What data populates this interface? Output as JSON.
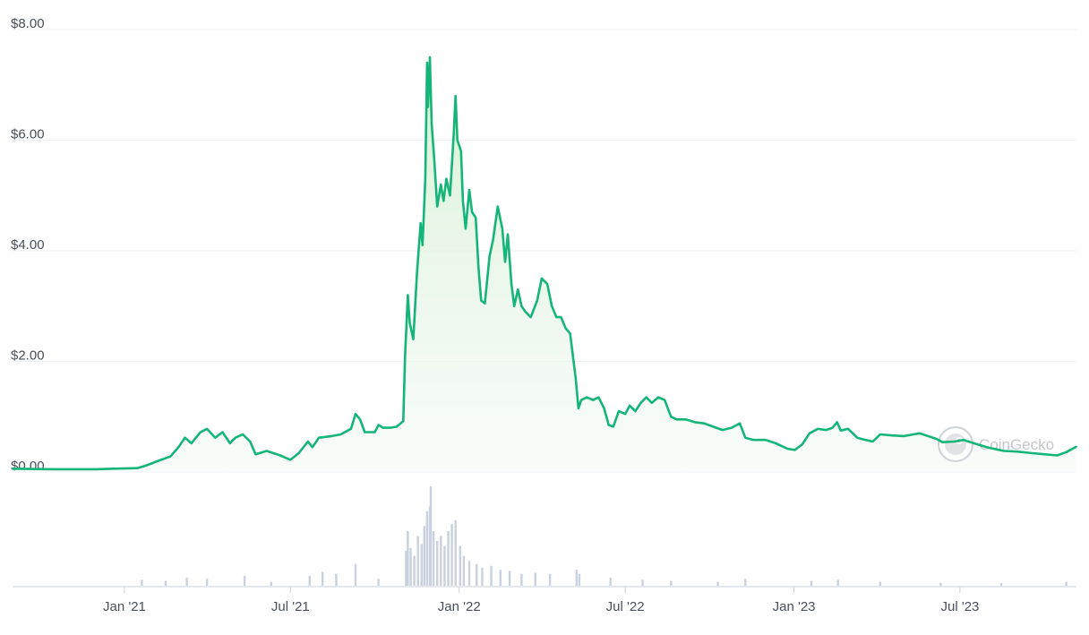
{
  "watermark": {
    "text": "CoinGecko",
    "icon": "gecko-logo-icon"
  },
  "colors": {
    "line": "#15b57a",
    "area_top": "#d9f2d9",
    "volume": "#c9d1de",
    "grid": "#eef0f3"
  },
  "chart_data": {
    "type": "area",
    "title": "",
    "xlabel": "",
    "ylabel": "",
    "grid": true,
    "x_range": [
      "2020-09-01",
      "2023-11-05"
    ],
    "ylim": [
      0,
      8
    ],
    "y_ticks": [
      0,
      2,
      4,
      6,
      8
    ],
    "y_tick_labels": [
      "$0.00",
      "$2.00",
      "$4.00",
      "$6.00",
      "$8.00"
    ],
    "x_ticks": [
      "2021-01-01",
      "2021-07-01",
      "2022-01-01",
      "2022-07-01",
      "2023-01-01",
      "2023-07-01"
    ],
    "x_tick_labels": [
      "Jan '21",
      "Jul '21",
      "Jan '22",
      "Jul '22",
      "Jan '23",
      "Jul '23"
    ],
    "series": [
      {
        "type": "line",
        "points": [
          [
            "2020-09-01",
            0.06
          ],
          [
            "2020-10-15",
            0.05
          ],
          [
            "2020-12-01",
            0.05
          ],
          [
            "2020-12-20",
            0.06
          ],
          [
            "2021-01-15",
            0.07
          ],
          [
            "2021-01-25",
            0.12
          ],
          [
            "2021-02-10",
            0.22
          ],
          [
            "2021-02-20",
            0.28
          ],
          [
            "2021-03-01",
            0.45
          ],
          [
            "2021-03-08",
            0.62
          ],
          [
            "2021-03-15",
            0.52
          ],
          [
            "2021-03-25",
            0.72
          ],
          [
            "2021-04-01",
            0.78
          ],
          [
            "2021-04-10",
            0.62
          ],
          [
            "2021-04-18",
            0.72
          ],
          [
            "2021-04-26",
            0.52
          ],
          [
            "2021-05-02",
            0.62
          ],
          [
            "2021-05-10",
            0.68
          ],
          [
            "2021-05-18",
            0.55
          ],
          [
            "2021-05-24",
            0.32
          ],
          [
            "2021-06-05",
            0.38
          ],
          [
            "2021-06-20",
            0.3
          ],
          [
            "2021-07-01",
            0.22
          ],
          [
            "2021-07-10",
            0.34
          ],
          [
            "2021-07-20",
            0.55
          ],
          [
            "2021-07-25",
            0.45
          ],
          [
            "2021-08-01",
            0.62
          ],
          [
            "2021-08-15",
            0.65
          ],
          [
            "2021-08-25",
            0.68
          ],
          [
            "2021-09-05",
            0.78
          ],
          [
            "2021-09-10",
            1.05
          ],
          [
            "2021-09-15",
            0.95
          ],
          [
            "2021-09-20",
            0.72
          ],
          [
            "2021-10-01",
            0.72
          ],
          [
            "2021-10-05",
            0.85
          ],
          [
            "2021-10-10",
            0.8
          ],
          [
            "2021-10-18",
            0.8
          ],
          [
            "2021-10-25",
            0.82
          ],
          [
            "2021-11-01",
            0.92
          ],
          [
            "2021-11-03",
            2.1
          ],
          [
            "2021-11-06",
            3.2
          ],
          [
            "2021-11-08",
            2.7
          ],
          [
            "2021-11-12",
            2.4
          ],
          [
            "2021-11-16",
            3.6
          ],
          [
            "2021-11-20",
            4.5
          ],
          [
            "2021-11-22",
            4.1
          ],
          [
            "2021-11-25",
            5.3
          ],
          [
            "2021-11-27",
            7.4
          ],
          [
            "2021-11-28",
            6.6
          ],
          [
            "2021-11-30",
            7.5
          ],
          [
            "2021-12-02",
            6.3
          ],
          [
            "2021-12-05",
            5.6
          ],
          [
            "2021-12-08",
            4.8
          ],
          [
            "2021-12-12",
            5.2
          ],
          [
            "2021-12-15",
            4.9
          ],
          [
            "2021-12-18",
            5.3
          ],
          [
            "2021-12-22",
            5.0
          ],
          [
            "2021-12-26",
            6.1
          ],
          [
            "2021-12-28",
            6.8
          ],
          [
            "2021-12-30",
            6.0
          ],
          [
            "2022-01-03",
            5.8
          ],
          [
            "2022-01-05",
            4.9
          ],
          [
            "2022-01-08",
            4.4
          ],
          [
            "2022-01-12",
            5.1
          ],
          [
            "2022-01-15",
            4.7
          ],
          [
            "2022-01-19",
            4.6
          ],
          [
            "2022-01-22",
            3.7
          ],
          [
            "2022-01-25",
            3.1
          ],
          [
            "2022-01-29",
            3.05
          ],
          [
            "2022-02-03",
            3.9
          ],
          [
            "2022-02-07",
            4.2
          ],
          [
            "2022-02-12",
            4.8
          ],
          [
            "2022-02-17",
            4.4
          ],
          [
            "2022-02-20",
            3.8
          ],
          [
            "2022-02-23",
            4.3
          ],
          [
            "2022-02-27",
            3.4
          ],
          [
            "2022-03-02",
            3.0
          ],
          [
            "2022-03-06",
            3.3
          ],
          [
            "2022-03-10",
            3.0
          ],
          [
            "2022-03-14",
            2.9
          ],
          [
            "2022-03-20",
            2.8
          ],
          [
            "2022-03-27",
            3.1
          ],
          [
            "2022-04-01",
            3.5
          ],
          [
            "2022-04-07",
            3.4
          ],
          [
            "2022-04-12",
            3.0
          ],
          [
            "2022-04-17",
            2.8
          ],
          [
            "2022-04-22",
            2.8
          ],
          [
            "2022-04-27",
            2.6
          ],
          [
            "2022-05-02",
            2.5
          ],
          [
            "2022-05-05",
            2.1
          ],
          [
            "2022-05-08",
            1.7
          ],
          [
            "2022-05-11",
            1.15
          ],
          [
            "2022-05-14",
            1.3
          ],
          [
            "2022-05-20",
            1.35
          ],
          [
            "2022-05-27",
            1.3
          ],
          [
            "2022-06-02",
            1.35
          ],
          [
            "2022-06-08",
            1.15
          ],
          [
            "2022-06-13",
            0.85
          ],
          [
            "2022-06-18",
            0.82
          ],
          [
            "2022-06-24",
            1.1
          ],
          [
            "2022-07-01",
            1.05
          ],
          [
            "2022-07-06",
            1.2
          ],
          [
            "2022-07-12",
            1.1
          ],
          [
            "2022-07-18",
            1.25
          ],
          [
            "2022-07-24",
            1.35
          ],
          [
            "2022-07-30",
            1.25
          ],
          [
            "2022-08-06",
            1.35
          ],
          [
            "2022-08-13",
            1.3
          ],
          [
            "2022-08-20",
            1.0
          ],
          [
            "2022-08-26",
            0.95
          ],
          [
            "2022-09-05",
            0.95
          ],
          [
            "2022-09-15",
            0.9
          ],
          [
            "2022-09-25",
            0.88
          ],
          [
            "2022-10-05",
            0.82
          ],
          [
            "2022-10-15",
            0.76
          ],
          [
            "2022-10-25",
            0.8
          ],
          [
            "2022-11-03",
            0.88
          ],
          [
            "2022-11-09",
            0.62
          ],
          [
            "2022-11-18",
            0.58
          ],
          [
            "2022-12-01",
            0.58
          ],
          [
            "2022-12-12",
            0.52
          ],
          [
            "2022-12-25",
            0.42
          ],
          [
            "2023-01-02",
            0.4
          ],
          [
            "2023-01-10",
            0.5
          ],
          [
            "2023-01-18",
            0.7
          ],
          [
            "2023-01-27",
            0.78
          ],
          [
            "2023-02-05",
            0.76
          ],
          [
            "2023-02-12",
            0.8
          ],
          [
            "2023-02-17",
            0.9
          ],
          [
            "2023-02-21",
            0.75
          ],
          [
            "2023-03-01",
            0.78
          ],
          [
            "2023-03-11",
            0.62
          ],
          [
            "2023-03-20",
            0.58
          ],
          [
            "2023-03-28",
            0.55
          ],
          [
            "2023-04-05",
            0.68
          ],
          [
            "2023-04-18",
            0.66
          ],
          [
            "2023-05-01",
            0.65
          ],
          [
            "2023-05-18",
            0.7
          ],
          [
            "2023-06-05",
            0.6
          ],
          [
            "2023-06-12",
            0.54
          ],
          [
            "2023-06-25",
            0.55
          ],
          [
            "2023-07-05",
            0.58
          ],
          [
            "2023-07-20",
            0.5
          ],
          [
            "2023-08-01",
            0.44
          ],
          [
            "2023-08-18",
            0.38
          ],
          [
            "2023-09-01",
            0.37
          ],
          [
            "2023-09-18",
            0.34
          ],
          [
            "2023-10-01",
            0.32
          ],
          [
            "2023-10-15",
            0.3
          ],
          [
            "2023-10-25",
            0.36
          ],
          [
            "2023-11-05",
            0.46
          ]
        ]
      },
      {
        "type": "volume-bar",
        "ylim": [
          0,
          1
        ],
        "points": [
          [
            "2021-01-20",
            0.06
          ],
          [
            "2021-02-15",
            0.05
          ],
          [
            "2021-03-10",
            0.08
          ],
          [
            "2021-04-01",
            0.07
          ],
          [
            "2021-05-12",
            0.1
          ],
          [
            "2021-06-10",
            0.04
          ],
          [
            "2021-07-22",
            0.1
          ],
          [
            "2021-08-05",
            0.14
          ],
          [
            "2021-08-20",
            0.12
          ],
          [
            "2021-09-10",
            0.22
          ],
          [
            "2021-10-05",
            0.07
          ],
          [
            "2021-11-04",
            0.35
          ],
          [
            "2021-11-06",
            0.55
          ],
          [
            "2021-11-09",
            0.38
          ],
          [
            "2021-11-13",
            0.3
          ],
          [
            "2021-11-17",
            0.5
          ],
          [
            "2021-11-21",
            0.42
          ],
          [
            "2021-11-24",
            0.6
          ],
          [
            "2021-11-27",
            0.75
          ],
          [
            "2021-11-30",
            0.8
          ],
          [
            "2021-12-01",
            1.0
          ],
          [
            "2021-12-04",
            0.55
          ],
          [
            "2021-12-08",
            0.45
          ],
          [
            "2021-12-12",
            0.5
          ],
          [
            "2021-12-16",
            0.4
          ],
          [
            "2021-12-20",
            0.55
          ],
          [
            "2021-12-24",
            0.62
          ],
          [
            "2021-12-28",
            0.66
          ],
          [
            "2022-01-02",
            0.4
          ],
          [
            "2022-01-06",
            0.3
          ],
          [
            "2022-01-12",
            0.25
          ],
          [
            "2022-01-20",
            0.22
          ],
          [
            "2022-01-26",
            0.18
          ],
          [
            "2022-02-05",
            0.2
          ],
          [
            "2022-02-15",
            0.16
          ],
          [
            "2022-02-25",
            0.15
          ],
          [
            "2022-03-10",
            0.12
          ],
          [
            "2022-03-25",
            0.13
          ],
          [
            "2022-04-10",
            0.12
          ],
          [
            "2022-05-09",
            0.16
          ],
          [
            "2022-05-12",
            0.12
          ],
          [
            "2022-06-15",
            0.08
          ],
          [
            "2022-07-20",
            0.06
          ],
          [
            "2022-08-20",
            0.05
          ],
          [
            "2022-10-10",
            0.04
          ],
          [
            "2022-11-09",
            0.07
          ],
          [
            "2023-01-20",
            0.05
          ],
          [
            "2023-02-18",
            0.06
          ],
          [
            "2023-04-05",
            0.04
          ],
          [
            "2023-06-10",
            0.03
          ],
          [
            "2023-08-15",
            0.03
          ],
          [
            "2023-10-25",
            0.04
          ]
        ]
      }
    ]
  }
}
